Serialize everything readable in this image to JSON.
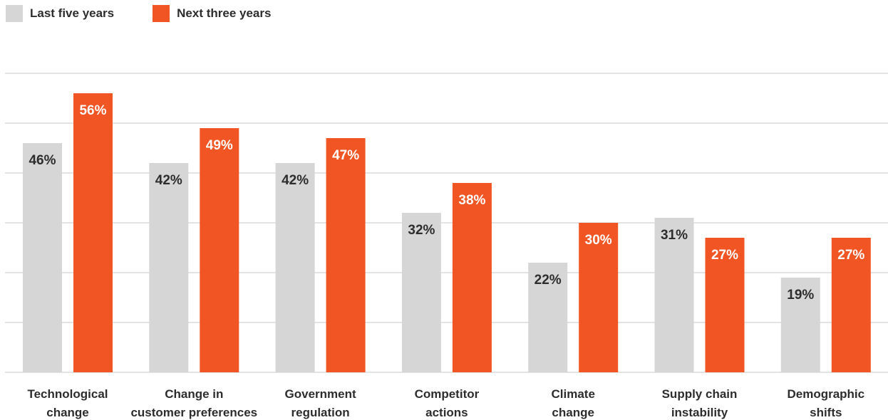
{
  "legend": {
    "series1": "Last five years",
    "series2": "Next three years"
  },
  "colors": {
    "series1": "#d6d6d6",
    "series2": "#f05523",
    "gridline": "#e3e3e3",
    "label_on_grey": "#2d2d2d",
    "label_on_orange": "#ffffff"
  },
  "chart_data": {
    "type": "bar",
    "categories": [
      [
        "Technological",
        "change"
      ],
      [
        "Change in",
        "customer preferences"
      ],
      [
        "Government",
        "regulation"
      ],
      [
        "Competitor",
        "actions"
      ],
      [
        "Climate",
        "change"
      ],
      [
        "Supply chain",
        "instability"
      ],
      [
        "Demographic",
        "shifts"
      ]
    ],
    "series": [
      {
        "name": "Last five years",
        "values": [
          46,
          42,
          42,
          32,
          22,
          31,
          19
        ]
      },
      {
        "name": "Next three years",
        "values": [
          56,
          49,
          47,
          38,
          30,
          27,
          27
        ]
      }
    ],
    "value_suffix": "%",
    "ylim": [
      0,
      60
    ],
    "grid": true,
    "legend_position": "top-left"
  }
}
